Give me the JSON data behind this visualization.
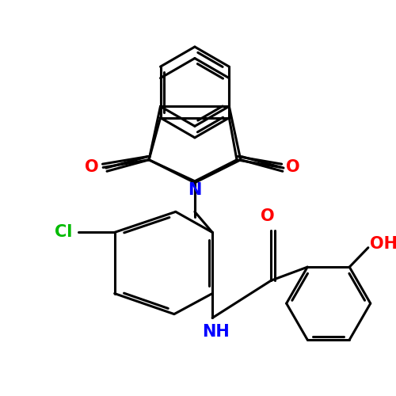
{
  "background_color": "#ffffff",
  "bond_color": "#000000",
  "bond_width": 2.2,
  "figsize": [
    5.0,
    5.0
  ],
  "dpi": 100,
  "colors": {
    "O": "#ff0000",
    "N": "#0000ff",
    "Cl": "#00bb00"
  }
}
